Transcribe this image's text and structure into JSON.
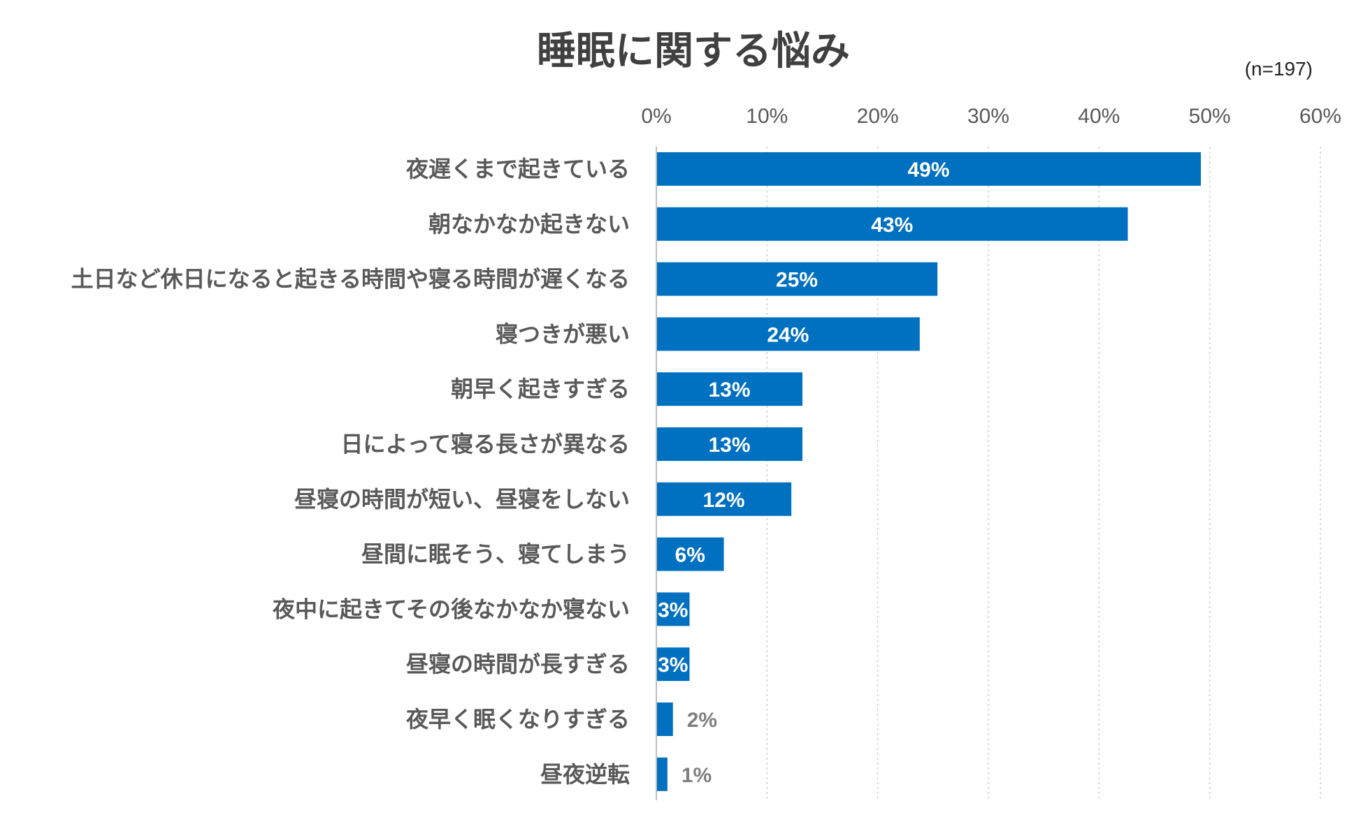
{
  "chart_data": {
    "type": "bar",
    "orientation": "horizontal",
    "title": "睡眠に関する悩み",
    "note": "(n=197)",
    "xlim": [
      0,
      60
    ],
    "ticks": [
      "0%",
      "10%",
      "20%",
      "30%",
      "40%",
      "50%",
      "60%"
    ],
    "tick_values": [
      0,
      10,
      20,
      30,
      40,
      50,
      60
    ],
    "grid": true,
    "categories": [
      "夜遅くまで起きている",
      "朝なかなか起きない",
      "土日など休日になると起きる時間や寝る時間が遅くなる",
      "寝つきが悪い",
      "朝早く起きすぎる",
      "日によって寝る長さが異なる",
      "昼寝の時間が短い、昼寝をしない",
      "昼間に眠そう、寝てしまう",
      "夜中に起きてその後なかなか寝ない",
      "昼寝の時間が長すぎる",
      "夜早く眠くなりすぎる",
      "昼夜逆転"
    ],
    "values": [
      49.2,
      42.6,
      25.4,
      23.8,
      13.2,
      13.2,
      12.2,
      6.1,
      3.0,
      3.0,
      1.5,
      1.0
    ],
    "labels": [
      "49%",
      "43%",
      "25%",
      "24%",
      "13%",
      "13%",
      "12%",
      "6%",
      "3%",
      "3%",
      "2%",
      "1%"
    ]
  },
  "colors": {
    "bar": "#0070C0",
    "label_inside": "#FFFFFF",
    "label_outside": "#7F7F7F"
  }
}
